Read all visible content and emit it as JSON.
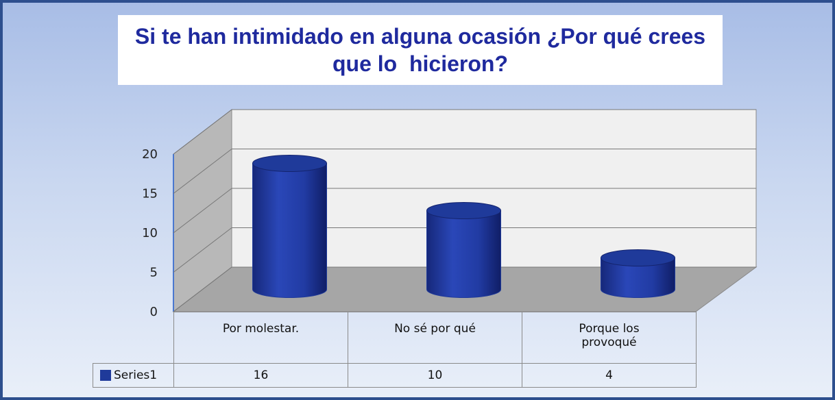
{
  "chart_data": {
    "type": "bar",
    "title": "Si te han intimidado en alguna ocasión ¿Por qué crees que lo  hicieron?",
    "categories": [
      "Por molestar.",
      "No sé por qué",
      "Porque los provoqué"
    ],
    "series": [
      {
        "name": "Series1",
        "color": "#1f3a9a",
        "values": [
          16,
          10,
          4
        ]
      }
    ],
    "ylim": [
      0,
      20
    ],
    "yticks": [
      0,
      5,
      10,
      15,
      20
    ],
    "grid": true
  }
}
